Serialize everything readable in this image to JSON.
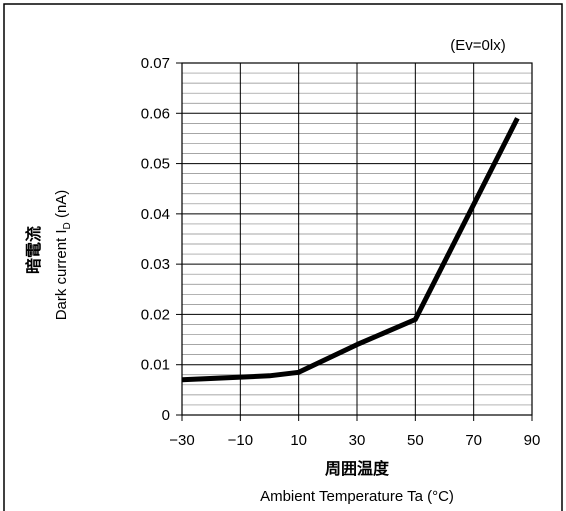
{
  "chart_data": {
    "type": "line",
    "annotation": "(Ev=0lx)",
    "ylabel_jp": "暗電流",
    "ylabel_en_main": "Dark current I",
    "ylabel_en_sub": "D",
    "ylabel_en_unit": " (nA)",
    "xlabel_jp": "周囲温度",
    "xlabel_en": "Ambient Temperature Ta (°C)",
    "xlim": [
      -30,
      90
    ],
    "ylim": [
      0,
      0.07
    ],
    "xticks": [
      -30,
      -10,
      10,
      30,
      50,
      70,
      90
    ],
    "xtick_labels": [
      "−30",
      "−10",
      "10",
      "30",
      "50",
      "70",
      "90"
    ],
    "yticks": [
      0,
      0.01,
      0.02,
      0.03,
      0.04,
      0.05,
      0.06,
      0.07
    ],
    "ytick_labels": [
      "0",
      "0.01",
      "0.02",
      "0.03",
      "0.04",
      "0.05",
      "0.06",
      "0.07"
    ],
    "grid": true,
    "series": [
      {
        "x": [
          -30,
          0,
          10,
          30,
          50,
          85
        ],
        "y": [
          0.007,
          0.0078,
          0.0085,
          0.014,
          0.019,
          0.059
        ]
      }
    ]
  }
}
